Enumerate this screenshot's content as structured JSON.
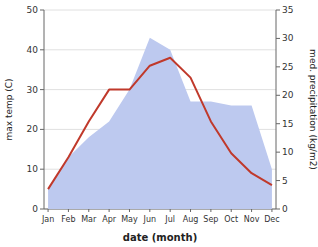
{
  "chart_data": {
    "type": "line",
    "categories": [
      "Jan",
      "Feb",
      "Mar",
      "Apr",
      "May",
      "Jun",
      "Jul",
      "Aug",
      "Sep",
      "Oct",
      "Nov",
      "Dec"
    ],
    "series": [
      {
        "type": "area",
        "color": "#bdc9ef",
        "values": [
          5,
          13,
          18,
          22,
          30,
          43,
          40,
          27,
          27,
          26,
          26,
          10
        ]
      },
      {
        "type": "line",
        "color": "#c0392b",
        "values": [
          5,
          13,
          22,
          30,
          30,
          36,
          38,
          33,
          22,
          14,
          9,
          6
        ]
      }
    ],
    "x_label": "date (month)",
    "y_label": "max temp (C)",
    "y2_label": "med. precipitation (kg/m2)",
    "ylim": [
      0,
      50
    ],
    "yticks": [
      0,
      10,
      20,
      30,
      40,
      50
    ],
    "y2lim": [
      0,
      35
    ],
    "y2ticks": [
      0,
      5,
      10,
      15,
      20,
      25,
      30,
      35
    ],
    "grid": true
  }
}
